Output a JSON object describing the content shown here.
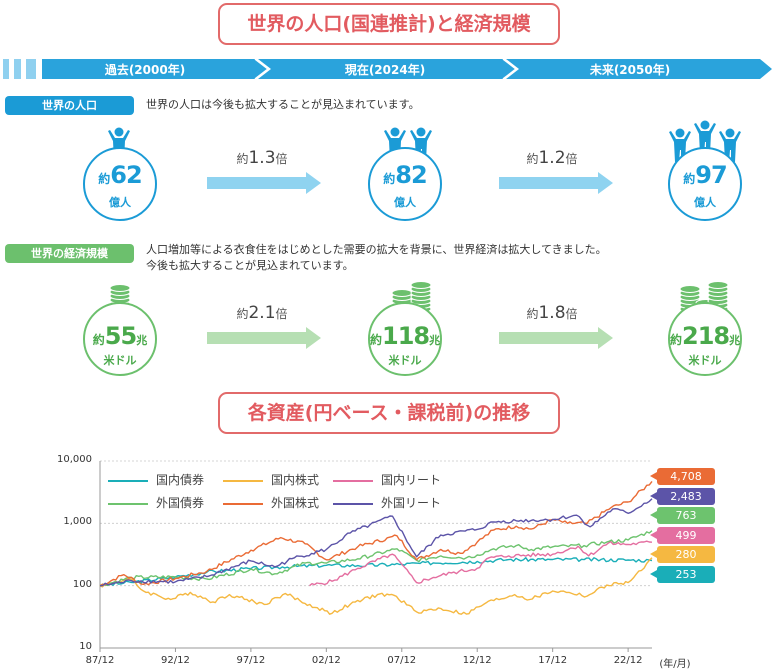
{
  "titles": {
    "main": "世界の人口(国連推計)と経済規模",
    "chart": "各資産(円ベース・課税前)の推移"
  },
  "timeline": [
    {
      "label": "過去(2000年)"
    },
    {
      "label": "現在(2024年)"
    },
    {
      "label": "未来(2050年)"
    }
  ],
  "population": {
    "badge": "世界の人口",
    "desc": "世界の人口は今後も拡大することが見込まれています。",
    "circles": [
      {
        "prefix": "約",
        "value": "62",
        "unit": "億人",
        "people": 1
      },
      {
        "prefix": "約",
        "value": "82",
        "unit": "億人",
        "people": 2
      },
      {
        "prefix": "約",
        "value": "97",
        "unit": "億人",
        "people": 3
      }
    ],
    "multipliers": [
      {
        "prefix": "約",
        "value": "1.3",
        "suffix": "倍"
      },
      {
        "prefix": "約",
        "value": "1.2",
        "suffix": "倍"
      }
    ]
  },
  "economy": {
    "badge": "世界の経済規模",
    "desc_line1": "人口増加等による衣食住をはじめとした需要の拡大を背景に、世界経済は拡大してきました。",
    "desc_line2": "今後も拡大することが見込まれています。",
    "circles": [
      {
        "prefix": "約",
        "value": "55",
        "suffix": "兆",
        "unit": "米ドル",
        "coins": 1
      },
      {
        "prefix": "約",
        "value": "118",
        "suffix": "兆",
        "unit": "米ドル",
        "coins": 2
      },
      {
        "prefix": "約",
        "value": "218",
        "suffix": "兆",
        "unit": "米ドル",
        "coins": 3
      }
    ],
    "multipliers": [
      {
        "prefix": "約",
        "value": "2.1",
        "suffix": "倍"
      },
      {
        "prefix": "約",
        "value": "1.8",
        "suffix": "倍"
      }
    ]
  },
  "colors": {
    "blue": "#1b9bd6",
    "green": "#6cc06d",
    "title_red": "#e25b60",
    "timeline_light": "#8fd0ef",
    "timeline_dark": "#2aa3dc",
    "arrow_blue": "#8fd3f0",
    "arrow_green": "#b6dfb3"
  },
  "chart_data": {
    "type": "line",
    "title": "各資産(円ベース・課税前)の推移",
    "xlabel": "(年/月)",
    "ylabel": "",
    "yscale": "log",
    "ylim": [
      10,
      10000
    ],
    "xlim": [
      1987.917,
      2024.5
    ],
    "yticks": [
      {
        "label": "10,000",
        "value": 10000
      },
      {
        "label": "1,000",
        "value": 1000
      },
      {
        "label": "100",
        "value": 100
      },
      {
        "label": "10",
        "value": 10
      }
    ],
    "xticks": [
      {
        "label": "87/12",
        "value": 1987.917
      },
      {
        "label": "92/12",
        "value": 1992.917
      },
      {
        "label": "97/12",
        "value": 1997.917
      },
      {
        "label": "02/12",
        "value": 2002.917
      },
      {
        "label": "07/12",
        "value": 2007.917
      },
      {
        "label": "12/12",
        "value": 2012.917
      },
      {
        "label": "17/12",
        "value": 2017.917
      },
      {
        "label": "22/12",
        "value": 2022.917
      }
    ],
    "grid": true,
    "legend": "top-left",
    "series": [
      {
        "name": "国内債券",
        "color": "#1aaeb8",
        "end_label": "253",
        "label_color": "#1aaeb8",
        "points": [
          [
            1987.917,
            100
          ],
          [
            1990,
            113
          ],
          [
            1992.917,
            138
          ],
          [
            1995,
            165
          ],
          [
            1997.917,
            188
          ],
          [
            2000,
            200
          ],
          [
            2002.917,
            212
          ],
          [
            2005,
            210
          ],
          [
            2007.917,
            220
          ],
          [
            2010,
            232
          ],
          [
            2012.917,
            245
          ],
          [
            2015,
            262
          ],
          [
            2017.917,
            263
          ],
          [
            2020,
            262
          ],
          [
            2022.917,
            258
          ],
          [
            2024.5,
            253
          ]
        ]
      },
      {
        "name": "国内株式",
        "color": "#f5b841",
        "end_label": "280",
        "label_color": "#f5b841",
        "points": [
          [
            1987.917,
            100
          ],
          [
            1989.9,
            128
          ],
          [
            1990.8,
            82
          ],
          [
            1992.6,
            60
          ],
          [
            1993.9,
            78
          ],
          [
            1995.4,
            55
          ],
          [
            1996.5,
            72
          ],
          [
            1998.8,
            50
          ],
          [
            2000.2,
            75
          ],
          [
            2001.5,
            52
          ],
          [
            2003.3,
            36
          ],
          [
            2004.5,
            50
          ],
          [
            2006.3,
            72
          ],
          [
            2007.4,
            70
          ],
          [
            2008.9,
            38
          ],
          [
            2010.5,
            43
          ],
          [
            2012.2,
            35
          ],
          [
            2013.5,
            53
          ],
          [
            2015.4,
            72
          ],
          [
            2016.4,
            60
          ],
          [
            2017.917,
            82
          ],
          [
            2019,
            78
          ],
          [
            2020.2,
            68
          ],
          [
            2021.5,
            102
          ],
          [
            2022.917,
            112
          ],
          [
            2023.8,
            175
          ],
          [
            2024.5,
            280
          ]
        ]
      },
      {
        "name": "国内リート",
        "color": "#e46ea0",
        "end_label": "499",
        "label_color": "#e46ea0",
        "points": [
          [
            2001.8,
            100
          ],
          [
            2003.3,
            118
          ],
          [
            2005,
            190
          ],
          [
            2007.3,
            320
          ],
          [
            2008.9,
            112
          ],
          [
            2010,
            135
          ],
          [
            2011.2,
            160
          ],
          [
            2012.917,
            190
          ],
          [
            2013.7,
            280
          ],
          [
            2015,
            300
          ],
          [
            2017.917,
            320
          ],
          [
            2019.6,
            430
          ],
          [
            2020.3,
            300
          ],
          [
            2021.6,
            480
          ],
          [
            2022.917,
            460
          ],
          [
            2024.5,
            499
          ]
        ]
      },
      {
        "name": "外国債券",
        "color": "#6dc36e",
        "end_label": "763",
        "label_color": "#6dc36e",
        "points": [
          [
            1987.917,
            100
          ],
          [
            1990,
            135
          ],
          [
            1992.917,
            138
          ],
          [
            1995,
            128
          ],
          [
            1997.917,
            185
          ],
          [
            1999.5,
            155
          ],
          [
            2001.5,
            230
          ],
          [
            2002.917,
            230
          ],
          [
            2005,
            270
          ],
          [
            2007.6,
            390
          ],
          [
            2008.9,
            255
          ],
          [
            2010.5,
            300
          ],
          [
            2012.2,
            280
          ],
          [
            2012.917,
            310
          ],
          [
            2014,
            390
          ],
          [
            2015.5,
            440
          ],
          [
            2016.5,
            380
          ],
          [
            2017.917,
            420
          ],
          [
            2020,
            440
          ],
          [
            2021.5,
            500
          ],
          [
            2022.917,
            540
          ],
          [
            2024.5,
            763
          ]
        ]
      },
      {
        "name": "外国株式",
        "color": "#ea6b35",
        "end_label": "4,708",
        "label_color": "#ea6b35",
        "points": [
          [
            1987.917,
            100
          ],
          [
            1989.5,
            150
          ],
          [
            1990.8,
            105
          ],
          [
            1992.917,
            130
          ],
          [
            1995,
            170
          ],
          [
            1997.917,
            370
          ],
          [
            1999.9,
            590
          ],
          [
            2001.5,
            470
          ],
          [
            2002.917,
            260
          ],
          [
            2005,
            420
          ],
          [
            2007.6,
            630
          ],
          [
            2008.9,
            260
          ],
          [
            2010.5,
            380
          ],
          [
            2011.8,
            330
          ],
          [
            2012.917,
            500
          ],
          [
            2014,
            780
          ],
          [
            2015.5,
            900
          ],
          [
            2016.5,
            810
          ],
          [
            2017.917,
            1150
          ],
          [
            2018.9,
            1000
          ],
          [
            2020.2,
            1000
          ],
          [
            2021.8,
            1800
          ],
          [
            2022.917,
            2200
          ],
          [
            2024.5,
            4708
          ]
        ]
      },
      {
        "name": "外国リート",
        "color": "#5c54a8",
        "end_label": "2,483",
        "label_color": "#5c54a8",
        "points": [
          [
            1987.917,
            100
          ],
          [
            1990,
            120
          ],
          [
            1992.917,
            115
          ],
          [
            1995,
            140
          ],
          [
            1997.917,
            250
          ],
          [
            1999.5,
            200
          ],
          [
            2000.8,
            280
          ],
          [
            2002.917,
            380
          ],
          [
            2004.5,
            700
          ],
          [
            2007.3,
            1300
          ],
          [
            2008.9,
            290
          ],
          [
            2010.5,
            650
          ],
          [
            2012.917,
            800
          ],
          [
            2014,
            1050
          ],
          [
            2015.5,
            1100
          ],
          [
            2017.917,
            1150
          ],
          [
            2019.5,
            1350
          ],
          [
            2020.4,
            880
          ],
          [
            2021.9,
            1700
          ],
          [
            2022.917,
            1450
          ],
          [
            2024.5,
            2483
          ]
        ]
      }
    ]
  }
}
